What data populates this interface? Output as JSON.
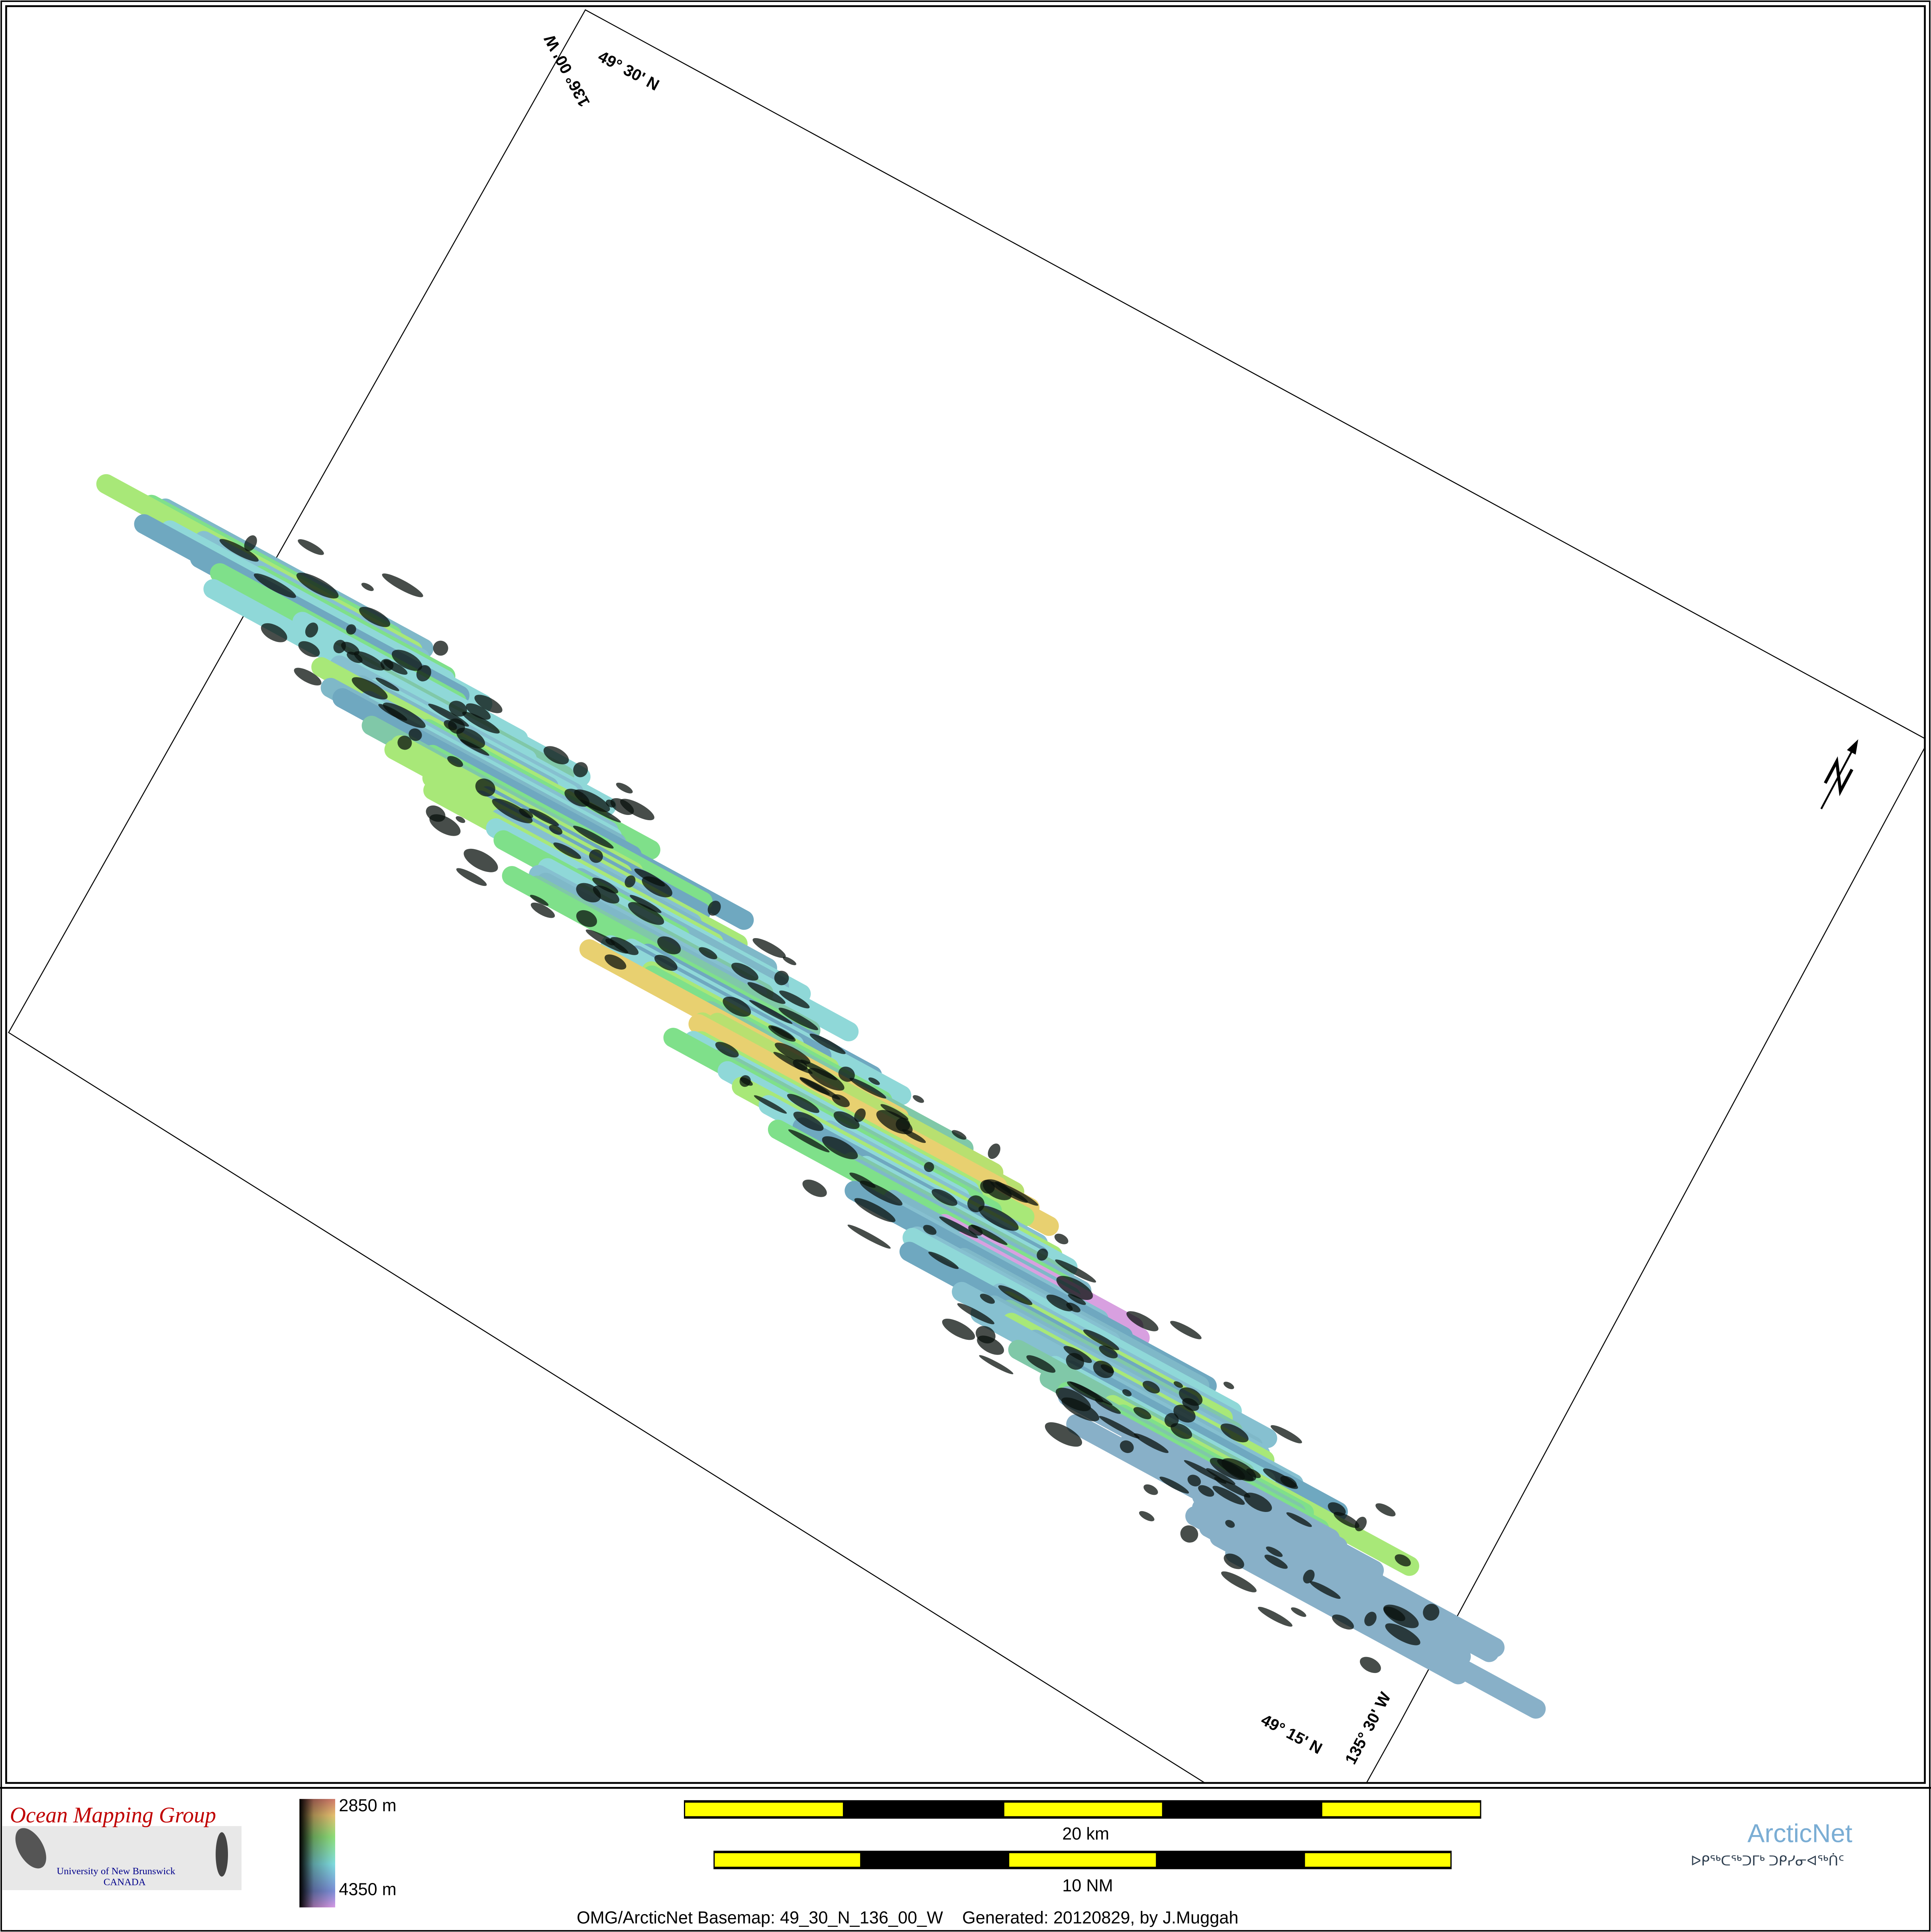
{
  "map": {
    "grid_labels": {
      "top_lon": "136° 00' W",
      "top_lat": "49° 30' N",
      "bottom_lat": "49° 15' N",
      "bottom_lon": "135° 30' W"
    },
    "north_arrow_icon": "north-arrow-icon",
    "depth_colors": [
      "#000000",
      "#6b9bd6",
      "#8be0e6",
      "#6fe07a",
      "#e6f06a",
      "#f0a070",
      "#c87bd8"
    ]
  },
  "legend": {
    "omg_logo": {
      "title": "Ocean Mapping Group",
      "subtitle": "University of New Brunswick",
      "country": "CANADA"
    },
    "colorbar": {
      "top_label": "2850 m",
      "bottom_label": "4350 m"
    },
    "scalebar_km": {
      "label": "20 km"
    },
    "scalebar_nm": {
      "label": "10 NM"
    },
    "footer": "OMG/ArcticNet Basemap: 49_30_N_136_00_W    Generated: 20120829, by J.Muggah",
    "arcticnet_logo": {
      "title": "ArcticNet",
      "syllabics": "ᐅᑭᖅᑕᖅᑐᒥᒃ ᑐᑭᓯᓂᐊᖅᑏᑦ"
    }
  }
}
